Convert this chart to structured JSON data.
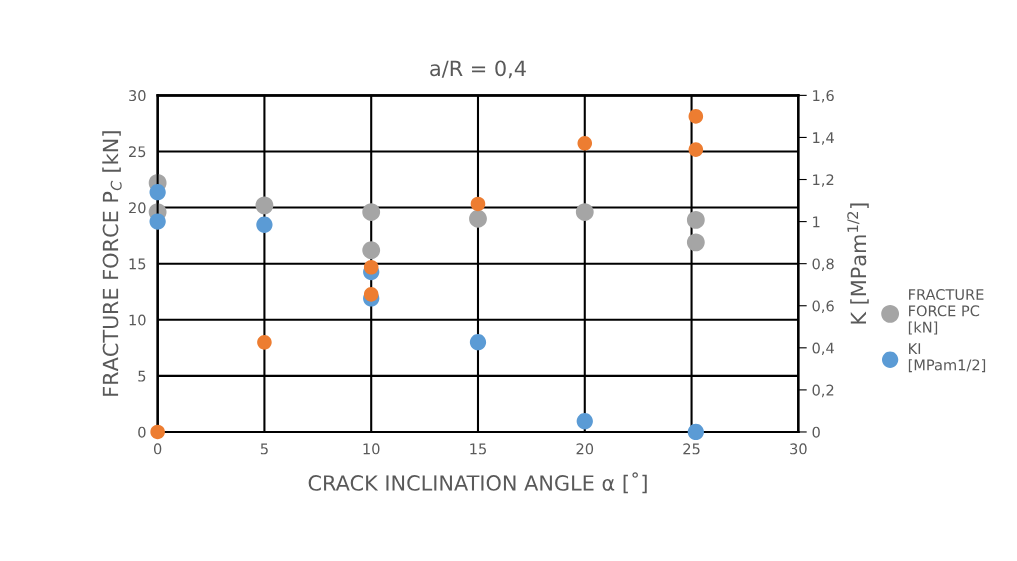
{
  "chart_data": {
    "type": "scatter",
    "title": "a/R = 0,4",
    "xlabel": "CRACK INCLINATION ANGLE α [˚]",
    "ylabel": "FRACTURE FORCE P$_{C}$ [kN]",
    "y2label": "K [MPam$^{1/2}$]",
    "series": [
      {
        "name": "FRACTURE FORCE PC [kN]",
        "color": "#a5a5a5",
        "x": [
          0,
          0,
          5,
          10,
          10,
          15,
          20,
          25.2,
          25.2
        ],
        "values": [
          22.2,
          19.6,
          20.2,
          19.6,
          16.2,
          19.0,
          19.6,
          18.9,
          16.9
        ]
      },
      {
        "name": "KI [MPam1/2]",
        "color": "#5b9bd5",
        "axis": "y2",
        "x": [
          0,
          0,
          5,
          10,
          10,
          15,
          20,
          25.2
        ],
        "values": [
          1.14,
          1.0,
          0.985,
          0.76,
          0.635,
          0.427,
          0.051,
          0.0
        ]
      },
      {
        "color": "#ed7d31",
        "axis": "y2",
        "x": [
          0,
          5,
          10,
          10,
          15,
          20,
          25.2,
          25.2
        ],
        "values": [
          0.0,
          0.426,
          0.783,
          0.654,
          1.084,
          1.372,
          1.5,
          1.342
        ]
      }
    ],
    "xlim": [
      0,
      30
    ],
    "xticks": [
      0,
      5,
      10,
      15,
      20,
      25,
      30
    ],
    "ylim": [
      0,
      30
    ],
    "yticks": [
      0,
      5,
      10,
      15,
      20,
      25,
      30
    ],
    "y2lim": [
      0,
      1.6
    ],
    "y2ticks": [
      0,
      {
        "value": 0.2,
        "label": "0,2"
      },
      {
        "value": 0.4,
        "label": "0,4"
      },
      {
        "value": 0.6,
        "label": "0,6"
      },
      {
        "value": 0.8,
        "label": "0,8"
      },
      1,
      {
        "value": 1.2,
        "label": "1,2"
      },
      {
        "value": 1.4,
        "label": "1,4"
      },
      {
        "value": 1.6,
        "label": "1,6"
      }
    ],
    "grid": true,
    "legend": "right",
    "marker": "circle"
  }
}
